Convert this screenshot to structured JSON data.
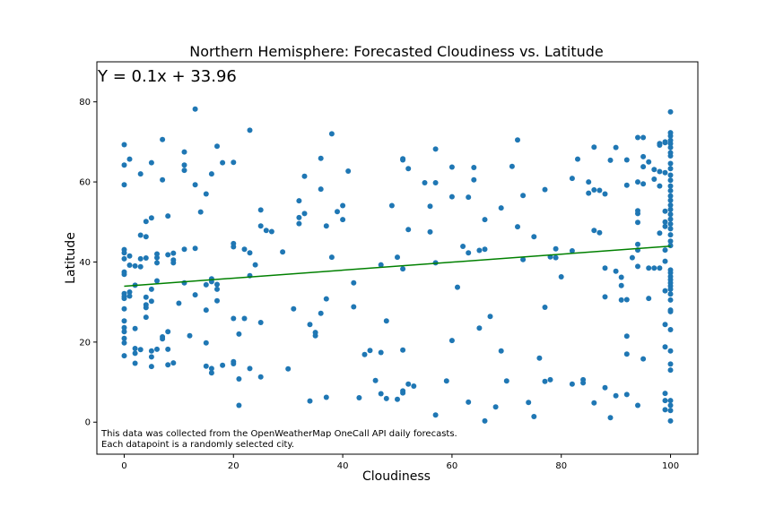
{
  "chart_data": {
    "type": "scatter",
    "title": "Northern Hemisphere: Forecasted Cloudiness vs. Latitude",
    "xlabel": "Cloudiness",
    "ylabel": "Latitude",
    "xlim": [
      -5,
      105
    ],
    "ylim": [
      -8,
      90
    ],
    "xticks": [
      0,
      20,
      40,
      60,
      80,
      100
    ],
    "yticks": [
      0,
      20,
      40,
      60,
      80
    ],
    "grid": false,
    "point_color": "#1f77b4",
    "regression": {
      "equation": "Y = 0.1x + 33.96",
      "slope": 0.1,
      "intercept": 33.96,
      "color": "#008000"
    },
    "annotations": [
      "This data was collected from the OpenWeatherMap OneCall API daily forecasts.",
      "Each datapoint is a randomly selected city."
    ],
    "points": [
      [
        0,
        69.3
      ],
      [
        0,
        64.2
      ],
      [
        0,
        59.3
      ],
      [
        0,
        43.1
      ],
      [
        0,
        42.3
      ],
      [
        0,
        40.8
      ],
      [
        0,
        37.5
      ],
      [
        0,
        36.9
      ],
      [
        0,
        32.1
      ],
      [
        0,
        31.4
      ],
      [
        0,
        30.9
      ],
      [
        0,
        28.3
      ],
      [
        0,
        25.3
      ],
      [
        0,
        23.6
      ],
      [
        0,
        22.6
      ],
      [
        0,
        20.9
      ],
      [
        0,
        19.8
      ],
      [
        0,
        16.6
      ],
      [
        1,
        65.7
      ],
      [
        1,
        41.5
      ],
      [
        1,
        39.2
      ],
      [
        1,
        32.5
      ],
      [
        1,
        31.5
      ],
      [
        2,
        39.0
      ],
      [
        2,
        34.2
      ],
      [
        2,
        23.4
      ],
      [
        2,
        18.4
      ],
      [
        2,
        17.2
      ],
      [
        2,
        14.7
      ],
      [
        3,
        62.0
      ],
      [
        3,
        46.7
      ],
      [
        3,
        40.8
      ],
      [
        3,
        38.8
      ],
      [
        3,
        18.1
      ],
      [
        4,
        50.1
      ],
      [
        4,
        46.3
      ],
      [
        4,
        41.0
      ],
      [
        4,
        31.2
      ],
      [
        4,
        29.3
      ],
      [
        4,
        28.6
      ],
      [
        4,
        26.2
      ],
      [
        5,
        64.8
      ],
      [
        5,
        51.0
      ],
      [
        5,
        33.2
      ],
      [
        5,
        30.2
      ],
      [
        5,
        17.8
      ],
      [
        5,
        16.3
      ],
      [
        5,
        13.9
      ],
      [
        6,
        42.0
      ],
      [
        6,
        41.1
      ],
      [
        6,
        39.8
      ],
      [
        6,
        35.3
      ],
      [
        6,
        18.2
      ],
      [
        7,
        70.6
      ],
      [
        7,
        60.5
      ],
      [
        7,
        21.3
      ],
      [
        7,
        20.8
      ],
      [
        8,
        51.5
      ],
      [
        8,
        41.8
      ],
      [
        8,
        22.6
      ],
      [
        8,
        18.2
      ],
      [
        8,
        14.3
      ],
      [
        9,
        42.2
      ],
      [
        9,
        40.5
      ],
      [
        9,
        39.8
      ],
      [
        9,
        14.8
      ],
      [
        10,
        29.7
      ],
      [
        11,
        67.5
      ],
      [
        11,
        64.2
      ],
      [
        11,
        62.9
      ],
      [
        11,
        43.2
      ],
      [
        11,
        34.8
      ],
      [
        12,
        21.6
      ],
      [
        13,
        78.2
      ],
      [
        13,
        59.3
      ],
      [
        13,
        43.4
      ],
      [
        13,
        31.8
      ],
      [
        14,
        52.5
      ],
      [
        15,
        57.0
      ],
      [
        15,
        34.3
      ],
      [
        15,
        28.0
      ],
      [
        15,
        19.8
      ],
      [
        15,
        14.0
      ],
      [
        16,
        62.0
      ],
      [
        16,
        35.8
      ],
      [
        16,
        35.1
      ],
      [
        16,
        13.4
      ],
      [
        16,
        12.3
      ],
      [
        17,
        68.9
      ],
      [
        17,
        34.4
      ],
      [
        17,
        33.2
      ],
      [
        17,
        30.3
      ],
      [
        18,
        64.8
      ],
      [
        18,
        14.2
      ],
      [
        20,
        64.9
      ],
      [
        20,
        44.6
      ],
      [
        20,
        43.8
      ],
      [
        20,
        25.9
      ],
      [
        20,
        15.1
      ],
      [
        20,
        14.6
      ],
      [
        21,
        22.0
      ],
      [
        21,
        10.8
      ],
      [
        21,
        4.2
      ],
      [
        22,
        43.2
      ],
      [
        22,
        25.9
      ],
      [
        23,
        72.9
      ],
      [
        23,
        42.3
      ],
      [
        23,
        36.6
      ],
      [
        23,
        13.4
      ],
      [
        24,
        39.3
      ],
      [
        25,
        53.0
      ],
      [
        25,
        49.0
      ],
      [
        25,
        24.9
      ],
      [
        25,
        11.3
      ],
      [
        26,
        47.9
      ],
      [
        27,
        47.6
      ],
      [
        29,
        42.5
      ],
      [
        30,
        13.3
      ],
      [
        31,
        28.3
      ],
      [
        32,
        55.3
      ],
      [
        32,
        51.1
      ],
      [
        32,
        49.6
      ],
      [
        33,
        61.4
      ],
      [
        33,
        52.1
      ],
      [
        34,
        24.4
      ],
      [
        34,
        5.3
      ],
      [
        35,
        22.4
      ],
      [
        35,
        21.6
      ],
      [
        36,
        65.9
      ],
      [
        36,
        58.2
      ],
      [
        36,
        27.2
      ],
      [
        37,
        49.0
      ],
      [
        37,
        30.8
      ],
      [
        37,
        6.2
      ],
      [
        38,
        72.0
      ],
      [
        38,
        41.2
      ],
      [
        39,
        52.6
      ],
      [
        40,
        54.1
      ],
      [
        40,
        50.6
      ],
      [
        41,
        62.7
      ],
      [
        42,
        34.8
      ],
      [
        42,
        28.8
      ],
      [
        43,
        6.1
      ],
      [
        44,
        16.9
      ],
      [
        45,
        17.9
      ],
      [
        46,
        10.4
      ],
      [
        47,
        39.3
      ],
      [
        47,
        17.4
      ],
      [
        47,
        7.1
      ],
      [
        48,
        25.3
      ],
      [
        48,
        5.9
      ],
      [
        49,
        54.1
      ],
      [
        50,
        41.2
      ],
      [
        50,
        5.7
      ],
      [
        51,
        65.8
      ],
      [
        51,
        65.5
      ],
      [
        51,
        38.3
      ],
      [
        51,
        18.0
      ],
      [
        51,
        7.8
      ],
      [
        51,
        7.3
      ],
      [
        52,
        63.3
      ],
      [
        52,
        48.1
      ],
      [
        52,
        9.5
      ],
      [
        53,
        9.0
      ],
      [
        55,
        59.8
      ],
      [
        56,
        53.9
      ],
      [
        56,
        47.5
      ],
      [
        57,
        68.2
      ],
      [
        57,
        59.8
      ],
      [
        57,
        39.8
      ],
      [
        57,
        1.8
      ],
      [
        59,
        10.3
      ],
      [
        60,
        63.7
      ],
      [
        60,
        56.3
      ],
      [
        60,
        20.4
      ],
      [
        61,
        33.7
      ],
      [
        62,
        43.9
      ],
      [
        63,
        56.2
      ],
      [
        63,
        42.3
      ],
      [
        63,
        5.0
      ],
      [
        64,
        63.6
      ],
      [
        64,
        60.5
      ],
      [
        65,
        23.5
      ],
      [
        65,
        42.9
      ],
      [
        66,
        43.2
      ],
      [
        66,
        50.6
      ],
      [
        66,
        0.3
      ],
      [
        67,
        26.4
      ],
      [
        68,
        3.8
      ],
      [
        69,
        53.5
      ],
      [
        69,
        17.8
      ],
      [
        70,
        10.3
      ],
      [
        71,
        63.9
      ],
      [
        72,
        70.5
      ],
      [
        72,
        48.8
      ],
      [
        73,
        56.6
      ],
      [
        73,
        40.6
      ],
      [
        74,
        4.9
      ],
      [
        75,
        46.3
      ],
      [
        75,
        1.4
      ],
      [
        76,
        16.0
      ],
      [
        77,
        58.1
      ],
      [
        77,
        28.7
      ],
      [
        77,
        10.2
      ],
      [
        78,
        41.3
      ],
      [
        78,
        10.6
      ],
      [
        79,
        43.3
      ],
      [
        79,
        41.1
      ],
      [
        80,
        36.3
      ],
      [
        82,
        60.9
      ],
      [
        82,
        42.8
      ],
      [
        82,
        9.5
      ],
      [
        83,
        65.7
      ],
      [
        84,
        10.6
      ],
      [
        84,
        9.8
      ],
      [
        85,
        60.0
      ],
      [
        85,
        57.2
      ],
      [
        86,
        68.7
      ],
      [
        86,
        58.0
      ],
      [
        86,
        47.9
      ],
      [
        86,
        4.8
      ],
      [
        87,
        57.9
      ],
      [
        87,
        47.3
      ],
      [
        88,
        57.0
      ],
      [
        88,
        38.5
      ],
      [
        88,
        31.3
      ],
      [
        88,
        8.6
      ],
      [
        89,
        65.4
      ],
      [
        89,
        1.1
      ],
      [
        90,
        68.6
      ],
      [
        90,
        37.7
      ],
      [
        90,
        6.6
      ],
      [
        91,
        36.2
      ],
      [
        91,
        34.1
      ],
      [
        91,
        30.5
      ],
      [
        92,
        65.5
      ],
      [
        92,
        59.2
      ],
      [
        92,
        30.6
      ],
      [
        92,
        21.5
      ],
      [
        92,
        17.0
      ],
      [
        92,
        6.9
      ],
      [
        93,
        41.1
      ],
      [
        94,
        71.1
      ],
      [
        94,
        60.0
      ],
      [
        94,
        52.8
      ],
      [
        94,
        52.1
      ],
      [
        94,
        49.9
      ],
      [
        94,
        44.4
      ],
      [
        94,
        43.0
      ],
      [
        94,
        38.9
      ],
      [
        94,
        4.2
      ],
      [
        95,
        71.1
      ],
      [
        95,
        66.3
      ],
      [
        95,
        63.8
      ],
      [
        95,
        59.5
      ],
      [
        95,
        15.8
      ],
      [
        96,
        65.0
      ],
      [
        96,
        38.5
      ],
      [
        96,
        30.9
      ],
      [
        97,
        63.1
      ],
      [
        97,
        60.7
      ],
      [
        97,
        38.5
      ],
      [
        98,
        69.6
      ],
      [
        98,
        69.2
      ],
      [
        98,
        62.6
      ],
      [
        98,
        59.0
      ],
      [
        98,
        47.2
      ],
      [
        98,
        38.5
      ],
      [
        99,
        70.0
      ],
      [
        99,
        69.8
      ],
      [
        99,
        62.3
      ],
      [
        99,
        52.7
      ],
      [
        99,
        50.0
      ],
      [
        99,
        48.9
      ],
      [
        99,
        43.0
      ],
      [
        99,
        40.2
      ],
      [
        99,
        32.8
      ],
      [
        99,
        24.4
      ],
      [
        99,
        18.8
      ],
      [
        99,
        7.2
      ],
      [
        99,
        5.4
      ],
      [
        99,
        3.1
      ],
      [
        100,
        77.5
      ],
      [
        100,
        72.3
      ],
      [
        100,
        71.5
      ],
      [
        100,
        70.4
      ],
      [
        100,
        69.6
      ],
      [
        100,
        68.6
      ],
      [
        100,
        67.3
      ],
      [
        100,
        66.5
      ],
      [
        100,
        64.6
      ],
      [
        100,
        63.3
      ],
      [
        100,
        61.7
      ],
      [
        100,
        60.4
      ],
      [
        100,
        59.0
      ],
      [
        100,
        57.8
      ],
      [
        100,
        56.5
      ],
      [
        100,
        55.4
      ],
      [
        100,
        54.2
      ],
      [
        100,
        53.1
      ],
      [
        100,
        51.9
      ],
      [
        100,
        50.7
      ],
      [
        100,
        49.5
      ],
      [
        100,
        48.3
      ],
      [
        100,
        46.8
      ],
      [
        100,
        45.2
      ],
      [
        100,
        44.1
      ],
      [
        100,
        38.0
      ],
      [
        100,
        37.3
      ],
      [
        100,
        36.4
      ],
      [
        100,
        35.6
      ],
      [
        100,
        34.8
      ],
      [
        100,
        34.0
      ],
      [
        100,
        33.2
      ],
      [
        100,
        32.0
      ],
      [
        100,
        30.5
      ],
      [
        100,
        28.0
      ],
      [
        100,
        27.6
      ],
      [
        100,
        23.1
      ],
      [
        100,
        17.8
      ],
      [
        100,
        14.5
      ],
      [
        100,
        13.0
      ],
      [
        100,
        5.4
      ],
      [
        100,
        4.2
      ],
      [
        100,
        2.9
      ],
      [
        100,
        0.3
      ]
    ]
  }
}
